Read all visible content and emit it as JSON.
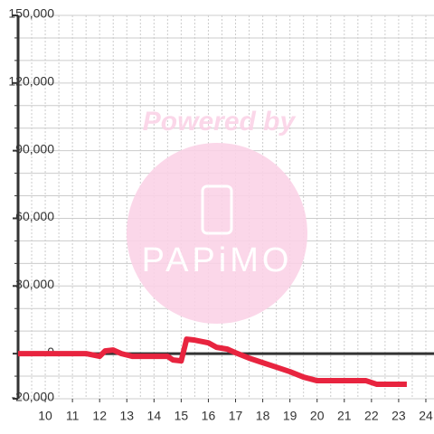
{
  "chart_data": {
    "type": "line",
    "watermark": {
      "line1": "Powered by",
      "line2": "PAPiMO"
    },
    "x": [
      9,
      11.5,
      12,
      12.2,
      12.5,
      12.8,
      13.2,
      14.5,
      14.7,
      15,
      15.2,
      15.5,
      16,
      16.3,
      16.7,
      17,
      17.5,
      18,
      18.5,
      19,
      19.5,
      20,
      21,
      21.8,
      22.2,
      23.3
    ],
    "series": [
      {
        "color": "#e8243f",
        "values": [
          0,
          0,
          -1200,
          1200,
          1600,
          0,
          -1200,
          -1200,
          -2800,
          -3200,
          6400,
          6000,
          4800,
          2800,
          2000,
          400,
          -2000,
          -4000,
          -6000,
          -8000,
          -10400,
          -12000,
          -12000,
          -12000,
          -13600,
          -13600
        ]
      }
    ],
    "xlim": [
      9,
      24.3
    ],
    "ylim": [
      -20000,
      150000
    ],
    "xticks": [
      10,
      11,
      12,
      13,
      14,
      15,
      16,
      17,
      18,
      19,
      20,
      21,
      22,
      23,
      24
    ],
    "yticks": [
      {
        "value": 150000,
        "label": "150,000"
      },
      {
        "value": 120000,
        "label": "120,000"
      },
      {
        "value": 90000,
        "label": "90,000"
      },
      {
        "value": 60000,
        "label": "60,000"
      },
      {
        "value": 30000,
        "label": "30,000"
      },
      0,
      {
        "value": -20000,
        "label": "-20,000"
      }
    ],
    "ygrid": [
      -10000,
      10000,
      20000,
      40000,
      50000,
      70000,
      80000,
      100000,
      110000,
      130000,
      140000
    ],
    "xgrid": [
      9.5,
      10.5,
      11.5,
      12.5,
      13.5,
      14.5,
      15.5,
      16.5,
      17.5,
      18.5,
      19.5,
      20.5,
      21.5,
      22.5,
      23.5
    ],
    "grid": true
  }
}
